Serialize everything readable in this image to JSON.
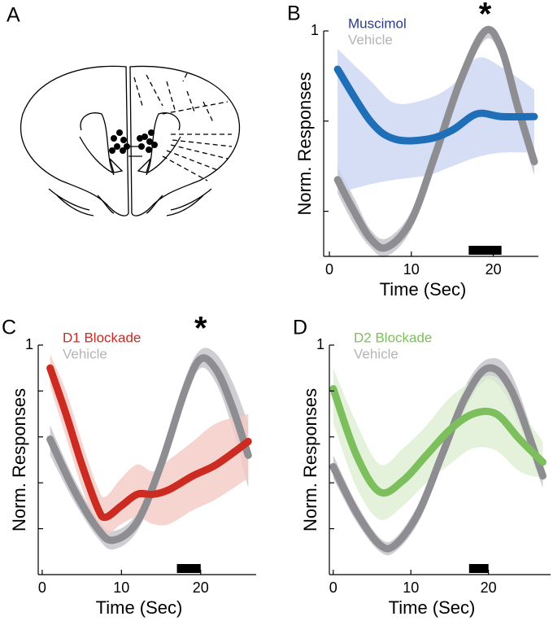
{
  "diagram": {
    "panel": "A"
  },
  "chart_data": [
    {
      "type": "line",
      "panel": "B",
      "xlabel": "Time (Sec)",
      "ylabel": "Norm. Responses",
      "xlim": [
        -0.7,
        25.5
      ],
      "xticks": [
        0,
        10,
        20
      ],
      "ylim": [
        0.5,
        1
      ],
      "yticks": [
        {
          "value": 0.6,
          "label": null
        },
        {
          "value": 0.8,
          "label": null
        },
        1
      ],
      "annotation": {
        "text": "*",
        "x": 19
      },
      "stimulus_window": [
        17,
        21
      ],
      "series": [
        {
          "name": "Vehicle",
          "color": "#8e8e92",
          "band_color": "#c2c2c8",
          "label_color": "#b4b4b4",
          "x": [
            1,
            3,
            5,
            7,
            10,
            13,
            16,
            19,
            21,
            23,
            25
          ],
          "values": [
            0.67,
            0.6,
            0.54,
            0.52,
            0.58,
            0.73,
            0.89,
            1.0,
            0.96,
            0.83,
            0.71
          ],
          "lower": [
            0.64,
            0.57,
            0.52,
            0.5,
            0.56,
            0.71,
            0.87,
            0.98,
            0.94,
            0.8,
            0.68
          ],
          "upper": [
            0.7,
            0.63,
            0.56,
            0.54,
            0.6,
            0.75,
            0.91,
            1.0,
            0.98,
            0.86,
            0.74
          ]
        },
        {
          "name": "Muscimol",
          "color": "#1f6fb8",
          "band_color": "#ccd6f2",
          "label_color": "#2b3a8c",
          "x": [
            1,
            5,
            8,
            12,
            15,
            18,
            21,
            25
          ],
          "values": [
            0.915,
            0.8,
            0.76,
            0.76,
            0.78,
            0.816,
            0.81,
            0.81
          ],
          "lower": [
            0.64,
            0.66,
            0.67,
            0.68,
            0.7,
            0.72,
            0.73,
            0.73
          ],
          "upper": [
            0.96,
            0.89,
            0.84,
            0.85,
            0.88,
            0.94,
            0.92,
            0.87
          ]
        }
      ]
    },
    {
      "type": "line",
      "panel": "C",
      "xlabel": "Time (Sec)",
      "ylabel": "Norm. Responses",
      "xlim": [
        -0.5,
        27
      ],
      "xticks": [
        0,
        10,
        20
      ],
      "ylim": [
        0,
        1
      ],
      "yticks": [
        {
          "value": 0.2,
          "label": null
        },
        {
          "value": 0.4,
          "label": null
        },
        {
          "value": 0.6,
          "label": null
        },
        {
          "value": 0.8,
          "label": null
        },
        1
      ],
      "annotation": {
        "text": "*",
        "x": 20
      },
      "stimulus_window": [
        17,
        20
      ],
      "series": [
        {
          "name": "Vehicle",
          "color": "#8e8e92",
          "band_color": "#c2c2c8",
          "label_color": "#b4b4b4",
          "x": [
            1,
            4,
            7,
            9,
            12,
            15,
            18,
            20,
            22,
            24,
            26
          ],
          "values": [
            0.59,
            0.37,
            0.2,
            0.15,
            0.23,
            0.48,
            0.8,
            0.94,
            0.89,
            0.73,
            0.52
          ],
          "lower": [
            0.52,
            0.32,
            0.16,
            0.11,
            0.19,
            0.44,
            0.76,
            0.9,
            0.83,
            0.64,
            0.38
          ],
          "upper": [
            0.65,
            0.42,
            0.24,
            0.19,
            0.27,
            0.52,
            0.85,
            0.98,
            0.96,
            0.84,
            0.66
          ]
        },
        {
          "name": "D1 Blockade",
          "color": "#cc2b22",
          "band_color": "#f4cbc6",
          "label_color": "#cc2b22",
          "x": [
            1,
            3,
            5,
            7,
            8,
            10,
            12,
            14,
            16,
            19,
            22,
            26
          ],
          "values": [
            0.9,
            0.7,
            0.48,
            0.29,
            0.25,
            0.3,
            0.35,
            0.35,
            0.37,
            0.43,
            0.48,
            0.58
          ],
          "lower": [
            0.82,
            0.6,
            0.38,
            0.2,
            0.17,
            0.22,
            0.25,
            0.22,
            0.22,
            0.28,
            0.33,
            0.42
          ],
          "upper": [
            0.96,
            0.8,
            0.58,
            0.38,
            0.34,
            0.42,
            0.48,
            0.45,
            0.5,
            0.58,
            0.66,
            0.7
          ]
        }
      ]
    },
    {
      "type": "line",
      "panel": "D",
      "xlabel": "Time (Sec)",
      "ylabel": "Norm. Responses",
      "xlim": [
        -0.5,
        28
      ],
      "xticks": [
        0,
        10,
        20
      ],
      "ylim": [
        0,
        1
      ],
      "yticks": [
        {
          "value": 0.2,
          "label": null
        },
        {
          "value": 0.4,
          "label": null
        },
        {
          "value": 0.6,
          "label": null
        },
        {
          "value": 0.8,
          "label": null
        },
        1
      ],
      "stimulus_window": [
        17.5,
        20
      ],
      "series": [
        {
          "name": "Vehicle",
          "color": "#8e8e92",
          "band_color": "#c2c2c8",
          "label_color": "#b4b4b4",
          "x": [
            0,
            3,
            6,
            8,
            11,
            14,
            17,
            20,
            23,
            27
          ],
          "values": [
            0.47,
            0.27,
            0.13,
            0.13,
            0.27,
            0.52,
            0.77,
            0.9,
            0.8,
            0.43
          ],
          "lower": [
            0.42,
            0.23,
            0.1,
            0.1,
            0.23,
            0.48,
            0.72,
            0.85,
            0.73,
            0.38
          ],
          "upper": [
            0.52,
            0.31,
            0.16,
            0.16,
            0.31,
            0.56,
            0.82,
            0.94,
            0.87,
            0.48
          ]
        },
        {
          "name": "D2 Blockade",
          "color": "#7cbf5c",
          "band_color": "#ddefd3",
          "label_color": "#7cbf5c",
          "x": [
            0,
            3,
            6,
            9,
            12,
            15,
            18,
            21,
            24,
            27
          ],
          "values": [
            0.81,
            0.52,
            0.36,
            0.41,
            0.52,
            0.63,
            0.7,
            0.7,
            0.59,
            0.49
          ],
          "lower": [
            0.66,
            0.38,
            0.24,
            0.3,
            0.4,
            0.48,
            0.55,
            0.54,
            0.45,
            0.42
          ],
          "upper": [
            0.9,
            0.66,
            0.48,
            0.55,
            0.65,
            0.77,
            0.84,
            0.86,
            0.72,
            0.58
          ]
        }
      ]
    }
  ]
}
